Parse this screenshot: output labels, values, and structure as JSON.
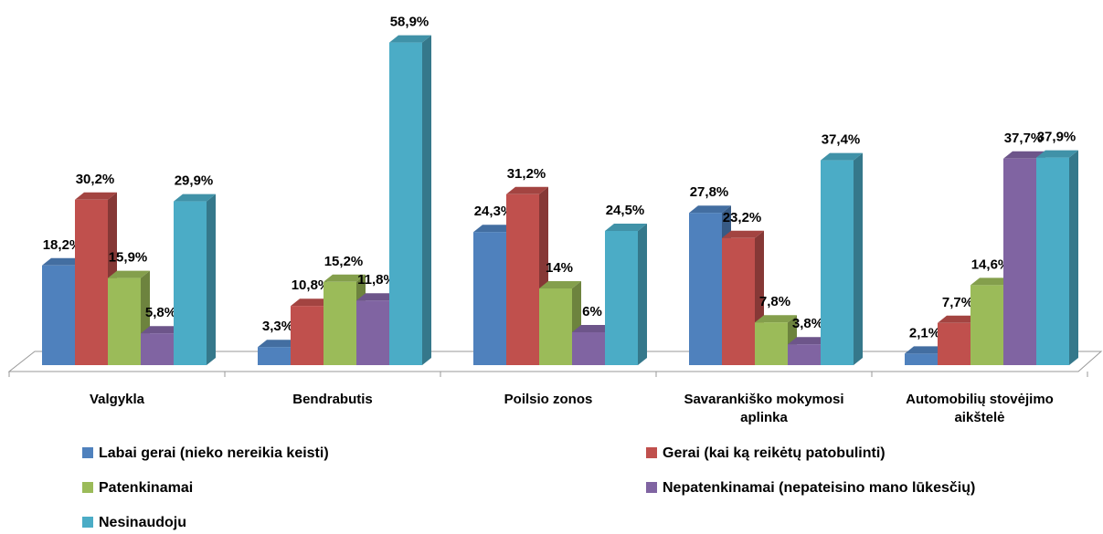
{
  "chart_data": {
    "type": "bar",
    "categories": [
      "Valgykla",
      "Bendrabutis",
      "Poilsio zonos",
      "Savarankiško mokymosi aplinka",
      "Automobilių stovėjimo aikštelė"
    ],
    "series": [
      {
        "name": "Labai gerai (nieko nereikia keisti)",
        "color": "#4f81bd",
        "values": [
          18.2,
          3.3,
          24.3,
          27.8,
          2.1
        ],
        "value_labels": [
          "18,2%",
          "3,3%",
          "24,3%",
          "27,8%",
          "2,1%"
        ]
      },
      {
        "name": "Gerai (kai ką reikėtų patobulinti)",
        "color": "#c0504d",
        "values": [
          30.2,
          10.8,
          31.2,
          23.2,
          7.7
        ],
        "value_labels": [
          "30,2%",
          "10,8%",
          "31,2%",
          "23,2%",
          "7,7%"
        ]
      },
      {
        "name": "Patenkinamai",
        "color": "#9bbb59",
        "values": [
          15.9,
          15.2,
          14,
          7.8,
          14.6
        ],
        "value_labels": [
          "15,9%",
          "15,2%",
          "14%",
          "7,8%",
          "14,6%"
        ]
      },
      {
        "name": "Nepatenkinamai (nepateisino mano lūkesčių)",
        "color": "#8064a2",
        "values": [
          5.8,
          11.8,
          6,
          3.8,
          37.7
        ],
        "value_labels": [
          "5,8%",
          "11,8%",
          "6%",
          "3,8%",
          "37,7%"
        ]
      },
      {
        "name": "Nesinaudoju",
        "color": "#4bacc6",
        "values": [
          29.9,
          58.9,
          24.5,
          37.4,
          37.9
        ],
        "value_labels": [
          "29,9%",
          "58,9%",
          "24,5%",
          "37,4%",
          "37,9%"
        ]
      }
    ]
  }
}
